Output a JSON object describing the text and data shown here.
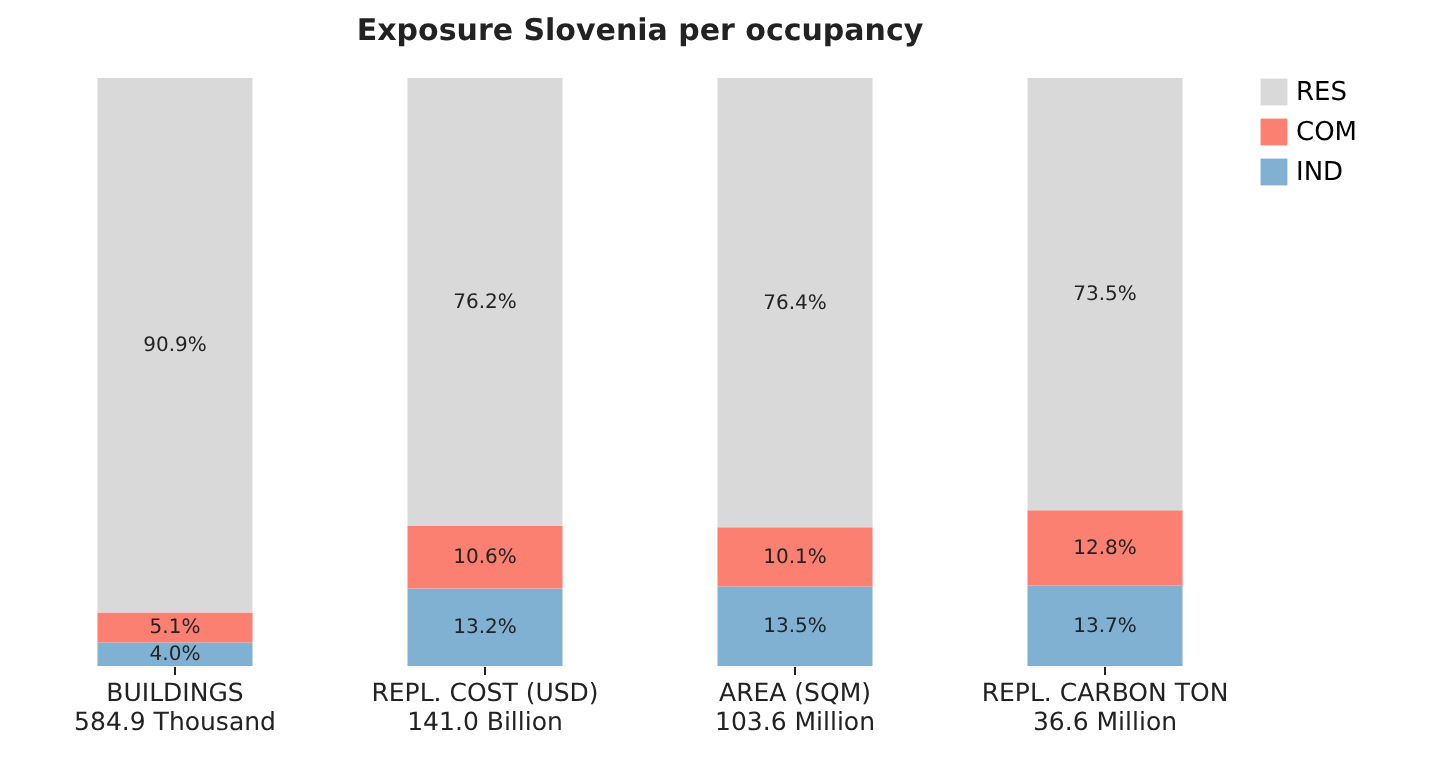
{
  "chart_data": {
    "type": "bar",
    "title": "Exposure Slovenia per occupancy",
    "categories": [
      "BUILDINGS\n584.9 Thousand",
      "REPL. COST (USD)\n141.0 Billion",
      "AREA (SQM)\n103.6 Million",
      "REPL. CARBON TON\n36.6 Million"
    ],
    "stacked": true,
    "ylim": [
      0,
      100
    ],
    "legend": "top right",
    "grid": false,
    "tick_labels": "x",
    "series": [
      {
        "name": "IND",
        "color": "#80b1d3",
        "values": [
          4.0,
          13.2,
          13.5,
          13.7
        ],
        "value_labels": [
          "4.0%",
          "13.2%",
          "13.5%",
          "13.7%"
        ]
      },
      {
        "name": "COM",
        "color": "#fb8072",
        "values": [
          5.1,
          10.6,
          10.1,
          12.8
        ],
        "value_labels": [
          "5.1%",
          "10.6%",
          "10.1%",
          "12.8%"
        ]
      },
      {
        "name": "RES",
        "color": "#d9d9d9",
        "values": [
          90.9,
          76.2,
          76.4,
          73.5
        ],
        "value_labels": [
          "90.9%",
          "76.2%",
          "76.4%",
          "73.5%"
        ]
      }
    ]
  }
}
